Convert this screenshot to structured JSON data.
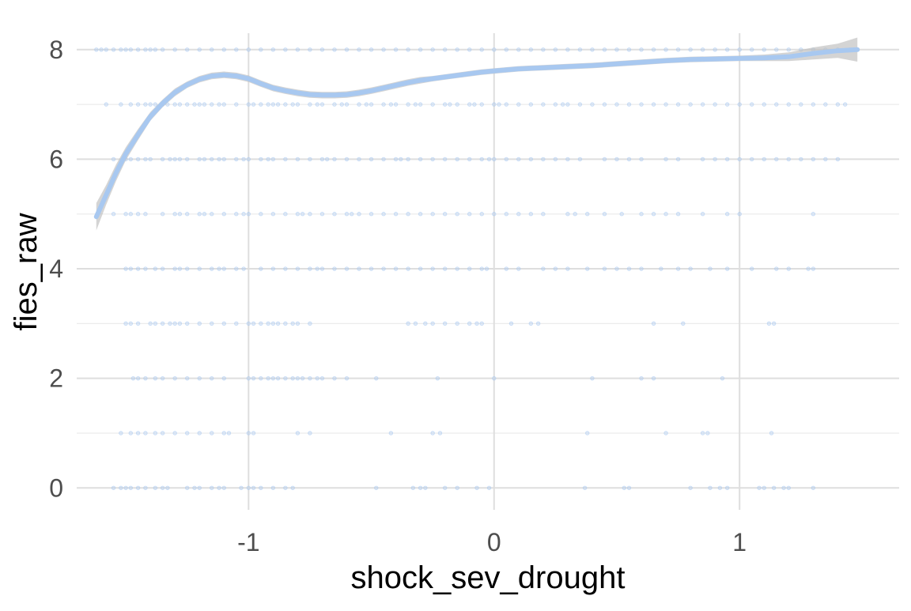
{
  "chart_data": {
    "type": "scatter",
    "title": "",
    "xlabel": "shock_sev_drought",
    "ylabel": "fies_raw",
    "xlim": [
      -1.7,
      1.65
    ],
    "ylim": [
      -0.4,
      8.3
    ],
    "x_ticks": [
      {
        "value": -1,
        "label": "-1"
      },
      {
        "value": 0,
        "label": "0"
      },
      {
        "value": 1,
        "label": "1"
      }
    ],
    "y_ticks": [
      {
        "value": 0,
        "label": "0"
      },
      {
        "value": 2,
        "label": "2"
      },
      {
        "value": 4,
        "label": "4"
      },
      {
        "value": 6,
        "label": "6"
      },
      {
        "value": 8,
        "label": "8"
      }
    ],
    "minor_y_gridlines": [
      1,
      3,
      5,
      7
    ],
    "grid": true,
    "point_color": "#a8c8f0",
    "smooth_color": "#a8c8f0",
    "ribbon_color": "#bdbdbd",
    "points": [
      {
        "y": 8,
        "x": [
          -1.62,
          -1.6,
          -1.58,
          -1.55,
          -1.52,
          -1.5,
          -1.48,
          -1.45,
          -1.42,
          -1.4,
          -1.38,
          -1.35,
          -1.3,
          -1.25,
          -1.2,
          -1.15,
          -1.1,
          -1.05,
          -1.0,
          -0.95,
          -0.9,
          -0.85,
          -0.8,
          -0.75,
          -0.7,
          -0.65,
          -0.6,
          -0.55,
          -0.5,
          -0.45,
          -0.4,
          -0.35,
          -0.3,
          -0.25,
          -0.2,
          -0.15,
          -0.1,
          -0.05,
          0.0,
          0.05,
          0.1,
          0.15,
          0.2,
          0.25,
          0.3,
          0.35,
          0.4,
          0.45,
          0.5,
          0.55,
          0.6,
          0.65,
          0.7,
          0.75,
          0.8,
          0.85,
          0.9,
          0.95,
          1.0,
          1.05,
          1.1,
          1.15,
          1.2,
          1.25,
          1.3,
          1.35,
          1.4,
          1.45,
          1.48
        ]
      },
      {
        "y": 7,
        "x": [
          -1.58,
          -1.52,
          -1.48,
          -1.45,
          -1.42,
          -1.4,
          -1.38,
          -1.35,
          -1.33,
          -1.3,
          -1.28,
          -1.25,
          -1.22,
          -1.2,
          -1.18,
          -1.15,
          -1.12,
          -1.1,
          -1.05,
          -1.0,
          -0.98,
          -0.95,
          -0.92,
          -0.9,
          -0.88,
          -0.85,
          -0.82,
          -0.8,
          -0.75,
          -0.72,
          -0.7,
          -0.65,
          -0.62,
          -0.6,
          -0.55,
          -0.52,
          -0.5,
          -0.45,
          -0.42,
          -0.4,
          -0.35,
          -0.32,
          -0.3,
          -0.25,
          -0.2,
          -0.18,
          -0.15,
          -0.1,
          -0.08,
          -0.05,
          0.0,
          0.02,
          0.05,
          0.1,
          0.15,
          0.2,
          0.25,
          0.28,
          0.3,
          0.35,
          0.4,
          0.45,
          0.5,
          0.55,
          0.6,
          0.65,
          0.7,
          0.75,
          0.8,
          0.85,
          0.9,
          0.95,
          1.0,
          1.05,
          1.1,
          1.15,
          1.2,
          1.25,
          1.3,
          1.35,
          1.4,
          1.43
        ]
      },
      {
        "y": 6,
        "x": [
          -1.55,
          -1.5,
          -1.48,
          -1.45,
          -1.42,
          -1.4,
          -1.35,
          -1.32,
          -1.3,
          -1.28,
          -1.25,
          -1.2,
          -1.18,
          -1.15,
          -1.12,
          -1.1,
          -1.05,
          -1.02,
          -1.0,
          -0.95,
          -0.92,
          -0.9,
          -0.85,
          -0.8,
          -0.75,
          -0.7,
          -0.68,
          -0.65,
          -0.6,
          -0.55,
          -0.5,
          -0.45,
          -0.4,
          -0.38,
          -0.35,
          -0.3,
          -0.25,
          -0.2,
          -0.15,
          -0.1,
          -0.05,
          -0.02,
          0.0,
          0.05,
          0.1,
          0.15,
          0.2,
          0.25,
          0.3,
          0.35,
          0.45,
          0.5,
          0.55,
          0.6,
          0.7,
          0.75,
          0.85,
          0.9,
          0.95,
          1.0,
          1.05,
          1.1,
          1.15,
          1.2,
          1.25,
          1.3,
          1.35,
          1.4
        ]
      },
      {
        "y": 5,
        "x": [
          -1.55,
          -1.5,
          -1.48,
          -1.45,
          -1.42,
          -1.35,
          -1.3,
          -1.28,
          -1.25,
          -1.2,
          -1.18,
          -1.15,
          -1.1,
          -1.05,
          -1.02,
          -1.0,
          -0.95,
          -0.9,
          -0.85,
          -0.8,
          -0.78,
          -0.75,
          -0.7,
          -0.65,
          -0.6,
          -0.58,
          -0.55,
          -0.5,
          -0.45,
          -0.4,
          -0.35,
          -0.3,
          -0.25,
          -0.2,
          -0.15,
          -0.1,
          -0.05,
          0.0,
          0.05,
          0.1,
          0.15,
          0.2,
          0.3,
          0.33,
          0.38,
          0.45,
          0.52,
          0.6,
          0.65,
          0.7,
          0.75,
          0.85,
          0.95,
          1.0,
          1.3
        ]
      },
      {
        "y": 4,
        "x": [
          -1.5,
          -1.48,
          -1.45,
          -1.42,
          -1.38,
          -1.35,
          -1.3,
          -1.28,
          -1.25,
          -1.2,
          -1.15,
          -1.12,
          -1.1,
          -1.05,
          -1.02,
          -0.95,
          -0.9,
          -0.85,
          -0.8,
          -0.75,
          -0.72,
          -0.7,
          -0.65,
          -0.6,
          -0.55,
          -0.5,
          -0.45,
          -0.4,
          -0.35,
          -0.3,
          -0.25,
          -0.2,
          -0.15,
          -0.1,
          -0.05,
          -0.03,
          0.05,
          0.1,
          0.2,
          0.25,
          0.3,
          0.38,
          0.45,
          0.5,
          0.55,
          0.6,
          0.68,
          0.75,
          0.8,
          0.88,
          0.95,
          1.05,
          1.15,
          1.2,
          1.28,
          1.3
        ]
      },
      {
        "y": 3,
        "x": [
          -1.5,
          -1.48,
          -1.45,
          -1.4,
          -1.38,
          -1.35,
          -1.32,
          -1.3,
          -1.28,
          -1.25,
          -1.2,
          -1.15,
          -1.1,
          -1.05,
          -1.0,
          -0.98,
          -0.95,
          -0.92,
          -0.9,
          -0.88,
          -0.85,
          -0.82,
          -0.8,
          -0.75,
          -0.35,
          -0.32,
          -0.28,
          -0.25,
          -0.2,
          -0.15,
          -0.1,
          -0.07,
          -0.05,
          0.07,
          0.15,
          0.18,
          0.65,
          0.77,
          1.12,
          1.14
        ]
      },
      {
        "y": 2,
        "x": [
          -1.47,
          -1.45,
          -1.42,
          -1.38,
          -1.35,
          -1.3,
          -1.25,
          -1.2,
          -1.15,
          -1.1,
          -1.0,
          -0.98,
          -0.95,
          -0.92,
          -0.9,
          -0.88,
          -0.85,
          -0.82,
          -0.8,
          -0.78,
          -0.75,
          -0.72,
          -0.7,
          -0.65,
          -0.6,
          -0.48,
          -0.23,
          0.0,
          0.4,
          0.6,
          0.65,
          0.93
        ]
      },
      {
        "y": 1,
        "x": [
          -1.52,
          -1.48,
          -1.45,
          -1.42,
          -1.38,
          -1.35,
          -1.3,
          -1.25,
          -1.2,
          -1.15,
          -1.1,
          -1.08,
          -1.0,
          -0.98,
          -0.8,
          -0.75,
          -0.42,
          -0.25,
          -0.22,
          0.38,
          0.7,
          0.85,
          0.87,
          1.13
        ]
      },
      {
        "y": 0,
        "x": [
          -1.55,
          -1.52,
          -1.5,
          -1.48,
          -1.45,
          -1.42,
          -1.38,
          -1.35,
          -1.33,
          -1.25,
          -1.22,
          -1.2,
          -1.15,
          -1.12,
          -1.1,
          -1.03,
          -1.0,
          -0.98,
          -0.95,
          -0.9,
          -0.85,
          -0.82,
          -0.48,
          -0.33,
          -0.3,
          -0.28,
          -0.2,
          -0.15,
          -0.07,
          -0.02,
          0.37,
          0.53,
          0.55,
          0.8,
          0.88,
          0.92,
          0.95,
          1.08,
          1.1,
          1.14,
          1.18,
          1.2,
          1.3
        ]
      }
    ],
    "smooth": {
      "x": [
        -1.62,
        -1.58,
        -1.54,
        -1.5,
        -1.45,
        -1.4,
        -1.35,
        -1.3,
        -1.25,
        -1.2,
        -1.15,
        -1.1,
        -1.05,
        -1.0,
        -0.95,
        -0.9,
        -0.85,
        -0.8,
        -0.75,
        -0.7,
        -0.65,
        -0.6,
        -0.55,
        -0.5,
        -0.45,
        -0.4,
        -0.35,
        -0.3,
        -0.25,
        -0.2,
        -0.15,
        -0.1,
        -0.05,
        0.0,
        0.05,
        0.1,
        0.15,
        0.2,
        0.3,
        0.4,
        0.5,
        0.6,
        0.7,
        0.8,
        0.9,
        1.0,
        1.1,
        1.2,
        1.3,
        1.4,
        1.48
      ],
      "y": [
        4.95,
        5.35,
        5.75,
        6.1,
        6.45,
        6.78,
        7.02,
        7.22,
        7.36,
        7.46,
        7.52,
        7.54,
        7.52,
        7.47,
        7.38,
        7.3,
        7.25,
        7.21,
        7.18,
        7.17,
        7.17,
        7.18,
        7.21,
        7.25,
        7.3,
        7.35,
        7.4,
        7.44,
        7.47,
        7.5,
        7.53,
        7.56,
        7.59,
        7.61,
        7.63,
        7.65,
        7.66,
        7.67,
        7.69,
        7.71,
        7.74,
        7.77,
        7.8,
        7.82,
        7.83,
        7.84,
        7.85,
        7.87,
        7.93,
        7.98,
        8.0
      ],
      "lo": [
        4.7,
        5.17,
        5.6,
        5.98,
        6.35,
        6.7,
        6.95,
        7.15,
        7.3,
        7.4,
        7.46,
        7.48,
        7.46,
        7.41,
        7.32,
        7.24,
        7.19,
        7.15,
        7.12,
        7.11,
        7.11,
        7.12,
        7.15,
        7.19,
        7.24,
        7.29,
        7.34,
        7.38,
        7.42,
        7.45,
        7.48,
        7.51,
        7.54,
        7.56,
        7.58,
        7.6,
        7.61,
        7.62,
        7.64,
        7.66,
        7.69,
        7.72,
        7.75,
        7.77,
        7.78,
        7.79,
        7.79,
        7.79,
        7.82,
        7.85,
        7.78
      ],
      "hi": [
        5.2,
        5.53,
        5.9,
        6.22,
        6.55,
        6.86,
        7.09,
        7.29,
        7.42,
        7.52,
        7.58,
        7.6,
        7.58,
        7.53,
        7.44,
        7.36,
        7.31,
        7.27,
        7.24,
        7.23,
        7.23,
        7.24,
        7.27,
        7.31,
        7.36,
        7.41,
        7.46,
        7.5,
        7.52,
        7.55,
        7.58,
        7.61,
        7.64,
        7.66,
        7.68,
        7.7,
        7.71,
        7.72,
        7.74,
        7.76,
        7.79,
        7.82,
        7.85,
        7.87,
        7.88,
        7.89,
        7.91,
        7.95,
        8.04,
        8.11,
        8.22
      ]
    }
  }
}
